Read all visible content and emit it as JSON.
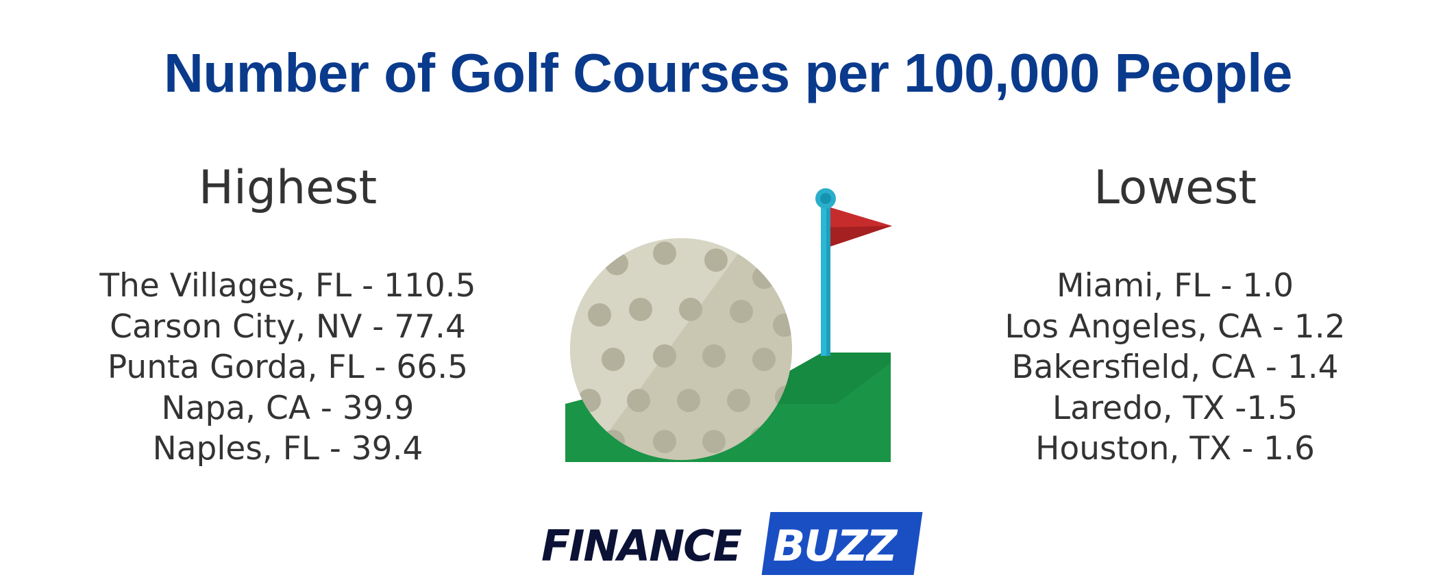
{
  "title": "Number of Golf Courses per 100,000 People",
  "highest": {
    "heading": "Highest",
    "items": [
      "The Villages, FL - 110.5",
      "Carson City, NV - 77.4",
      "Punta Gorda, FL - 66.5",
      "Napa, CA - 39.9",
      "Naples, FL - 39.4"
    ]
  },
  "lowest": {
    "heading": "Lowest",
    "items": [
      "Miami, FL - 1.0",
      "Los Angeles, CA - 1.2",
      "Bakersfield, CA - 1.4",
      "Laredo, TX -1.5",
      "Houston, TX - 1.6"
    ]
  },
  "illustration": {
    "icons": [
      "golf-ball-icon",
      "golf-flag-icon",
      "golf-green-icon"
    ]
  },
  "logo": {
    "part1": "FINANCE",
    "part2": "BUZZ"
  },
  "colors": {
    "title": "#0a3a8c",
    "text": "#333333",
    "green": "#1a9447",
    "flag": "#c72c2c",
    "pole": "#2bb7d6",
    "brand_blue": "#1a4fc4",
    "brand_dark": "#0b1236"
  }
}
